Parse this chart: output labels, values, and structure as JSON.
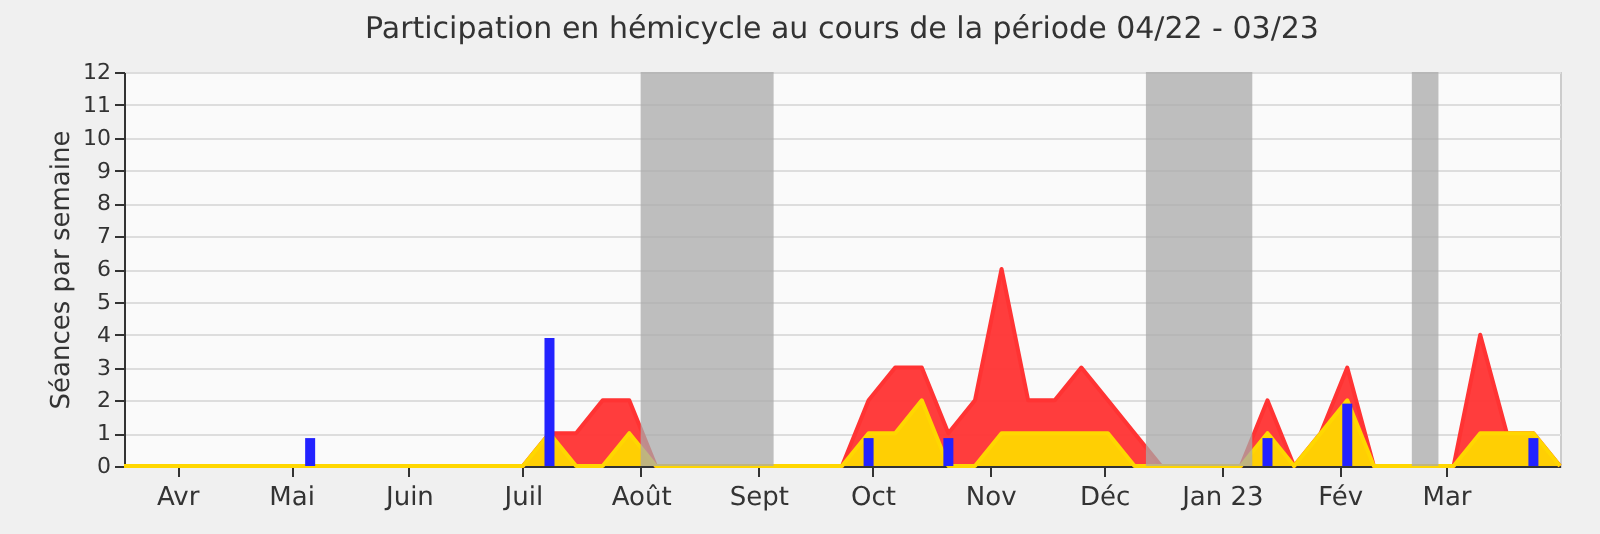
{
  "chart_data": {
    "type": "area",
    "title": "Participation en hémicycle au cours de la période 04/22 - 03/23",
    "ylabel": "Séances par semaine",
    "x": [
      "2022-04-01",
      "2022-04-08",
      "2022-04-15",
      "2022-04-22",
      "2022-04-29",
      "2022-05-06",
      "2022-05-13",
      "2022-05-20",
      "2022-05-27",
      "2022-06-03",
      "2022-06-10",
      "2022-06-17",
      "2022-06-24",
      "2022-07-01",
      "2022-07-08",
      "2022-07-15",
      "2022-07-22",
      "2022-07-29",
      "2022-08-05",
      "2022-08-12",
      "2022-08-19",
      "2022-08-26",
      "2022-09-02",
      "2022-09-09",
      "2022-09-16",
      "2022-09-23",
      "2022-09-30",
      "2022-10-07",
      "2022-10-14",
      "2022-10-21",
      "2022-10-28",
      "2022-11-04",
      "2022-11-11",
      "2022-11-18",
      "2022-11-25",
      "2022-12-02",
      "2022-12-09",
      "2022-12-16",
      "2022-12-23",
      "2022-12-30",
      "2023-01-06",
      "2023-01-13",
      "2023-01-20",
      "2023-01-27",
      "2023-02-03",
      "2023-02-10",
      "2023-02-17",
      "2023-02-24",
      "2023-03-03",
      "2023-03-10",
      "2023-03-17",
      "2023-03-24",
      "2023-03-31",
      "2023-04-07",
      "2023-04-14"
    ],
    "series": [
      {
        "color": "#ff3333",
        "values": [
          0,
          0,
          0,
          0,
          0,
          0,
          0,
          0,
          0,
          0,
          0,
          0,
          0,
          0,
          0,
          0,
          1,
          1,
          2,
          2,
          0,
          0,
          0,
          0,
          0,
          0,
          0,
          0,
          2,
          3,
          3,
          1,
          2,
          6,
          2,
          2,
          3,
          2,
          1,
          0,
          0,
          0,
          0,
          2,
          0,
          1,
          3,
          0,
          0,
          0,
          0,
          4,
          1,
          1,
          0
        ]
      },
      {
        "color": "#ffd700",
        "values": [
          0,
          0,
          0,
          0,
          0,
          0,
          0,
          0,
          0,
          0,
          0,
          0,
          0,
          0,
          0,
          0,
          1,
          0,
          0,
          1,
          0,
          0,
          0,
          0,
          0,
          0,
          0,
          0,
          1,
          1,
          2,
          0,
          0,
          1,
          1,
          1,
          1,
          1,
          0,
          0,
          0,
          0,
          0,
          1,
          0,
          1,
          2,
          0,
          0,
          0,
          0,
          1,
          1,
          1,
          0
        ]
      },
      {
        "type": "bar",
        "color": "#2222ff",
        "x": [
          "2022-05-20",
          "2022-07-22",
          "2022-10-14",
          "2022-11-04",
          "2023-01-27",
          "2023-02-17",
          "2023-04-07"
        ],
        "values": [
          0.85,
          3.9,
          0.85,
          0.85,
          0.85,
          1.9,
          0.85
        ]
      }
    ],
    "bands": [
      {
        "axis": "x",
        "from": "2022-08-15",
        "to": "2022-09-19",
        "color": "#aaaaaa"
      },
      {
        "axis": "x",
        "from": "2022-12-26",
        "to": "2023-01-23",
        "color": "#aaaaaa"
      },
      {
        "axis": "x",
        "from": "2023-03-06",
        "to": "2023-03-13",
        "color": "#aaaaaa"
      }
    ],
    "xlim": [
      "2022-04-01",
      "2023-04-14"
    ],
    "xticks": [
      {
        "value": "2022-04-15",
        "label": "Avr"
      },
      {
        "value": "2022-05-15",
        "label": "Mai"
      },
      {
        "value": "2022-06-15",
        "label": "Juin"
      },
      {
        "value": "2022-07-15",
        "label": "Juil"
      },
      {
        "value": "2022-08-15",
        "label": "Août"
      },
      {
        "value": "2022-09-15",
        "label": "Sept"
      },
      {
        "value": "2022-10-15",
        "label": "Oct"
      },
      {
        "value": "2022-11-15",
        "label": "Nov"
      },
      {
        "value": "2022-12-15",
        "label": "Déc"
      },
      {
        "value": "2023-01-15",
        "label": "Jan 23"
      },
      {
        "value": "2023-02-15",
        "label": "Fév"
      },
      {
        "value": "2023-03-15",
        "label": "Mar"
      }
    ],
    "ylim": [
      0,
      12
    ],
    "yticks": [
      0,
      1,
      2,
      3,
      4,
      5,
      6,
      7,
      8,
      9,
      10,
      11,
      12
    ],
    "grid": "y"
  }
}
